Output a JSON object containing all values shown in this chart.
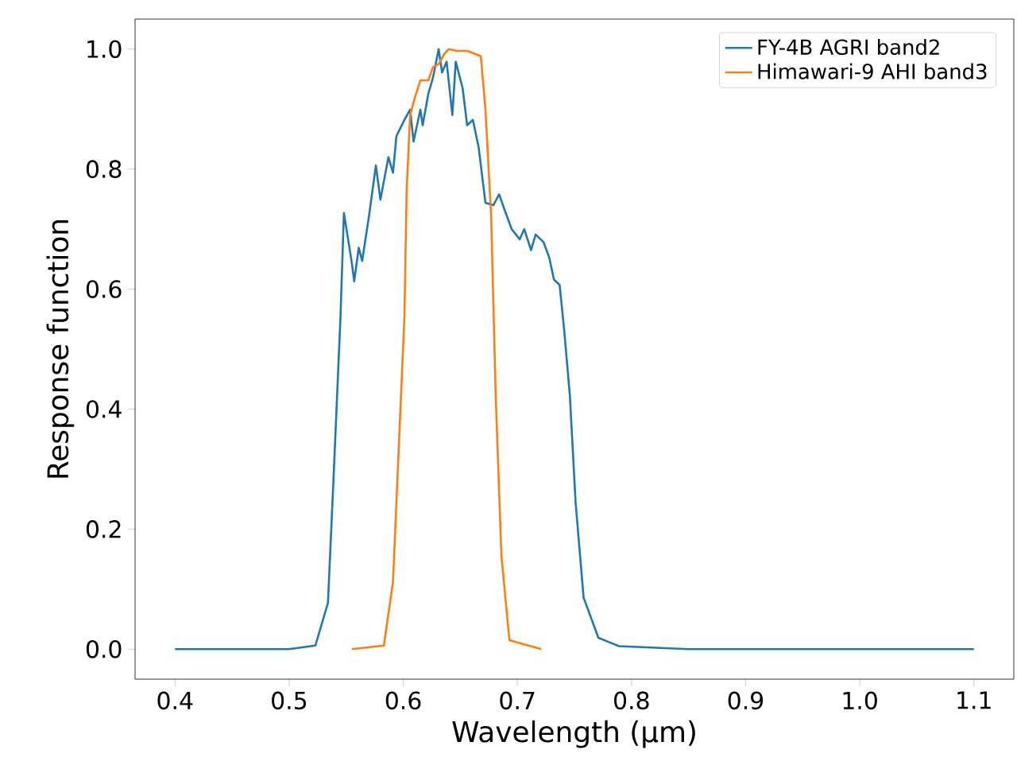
{
  "chart_data": {
    "type": "line",
    "xlabel": "Wavelength (μm)",
    "ylabel": "Response function",
    "xlim": [
      0.365,
      1.135
    ],
    "ylim": [
      -0.05,
      1.05
    ],
    "xticks": [
      0.4,
      0.5,
      0.6,
      0.7,
      0.8,
      0.9,
      {
        "value": 1.0,
        "label": "1.0"
      },
      1.1
    ],
    "yticks": [
      {
        "value": 0,
        "label": "0.0"
      },
      0.2,
      0.4,
      0.6,
      0.8,
      {
        "value": 1.0,
        "label": "1.0"
      }
    ],
    "legend": "top right",
    "grid": false,
    "series": [
      {
        "name": "FY-4B AGRI band2",
        "color": "#1f77b4",
        "x": [
          0.4,
          0.5,
          0.523,
          0.534,
          0.539,
          0.545,
          0.548,
          0.555,
          0.557,
          0.561,
          0.564,
          0.57,
          0.576,
          0.58,
          0.587,
          0.591,
          0.594,
          0.601,
          0.606,
          0.609,
          0.615,
          0.617,
          0.622,
          0.626,
          0.631,
          0.634,
          0.638,
          0.643,
          0.646,
          0.652,
          0.656,
          0.661,
          0.666,
          0.672,
          0.679,
          0.684,
          0.689,
          0.695,
          0.702,
          0.706,
          0.712,
          0.716,
          0.723,
          0.728,
          0.732,
          0.737,
          0.741,
          0.746,
          0.751,
          0.758,
          0.771,
          0.789,
          0.85,
          1.1
        ],
        "values": [
          0,
          0,
          0.006,
          0.077,
          0.289,
          0.554,
          0.727,
          0.643,
          0.613,
          0.669,
          0.647,
          0.722,
          0.806,
          0.749,
          0.82,
          0.794,
          0.855,
          0.882,
          0.899,
          0.846,
          0.899,
          0.873,
          0.926,
          0.952,
          1.0,
          0.961,
          0.979,
          0.89,
          0.979,
          0.935,
          0.873,
          0.882,
          0.837,
          0.744,
          0.74,
          0.758,
          0.731,
          0.7,
          0.683,
          0.7,
          0.665,
          0.691,
          0.678,
          0.652,
          0.616,
          0.607,
          0.532,
          0.422,
          0.245,
          0.086,
          0.019,
          0.005,
          0,
          0
        ]
      },
      {
        "name": "Himawari-9 AHI band3",
        "color": "#ff7f0e",
        "x": [
          0.555,
          0.583,
          0.591,
          0.596,
          0.601,
          0.603,
          0.606,
          0.61,
          0.615,
          0.622,
          0.626,
          0.631,
          0.636,
          0.64,
          0.647,
          0.656,
          0.663,
          0.668,
          0.672,
          0.677,
          0.681,
          0.686,
          0.693,
          0.721
        ],
        "values": [
          0,
          0.006,
          0.112,
          0.333,
          0.554,
          0.767,
          0.89,
          0.918,
          0.948,
          0.948,
          0.97,
          0.975,
          0.992,
          1.0,
          0.997,
          0.997,
          0.992,
          0.988,
          0.899,
          0.722,
          0.422,
          0.156,
          0.015,
          0
        ]
      }
    ]
  }
}
